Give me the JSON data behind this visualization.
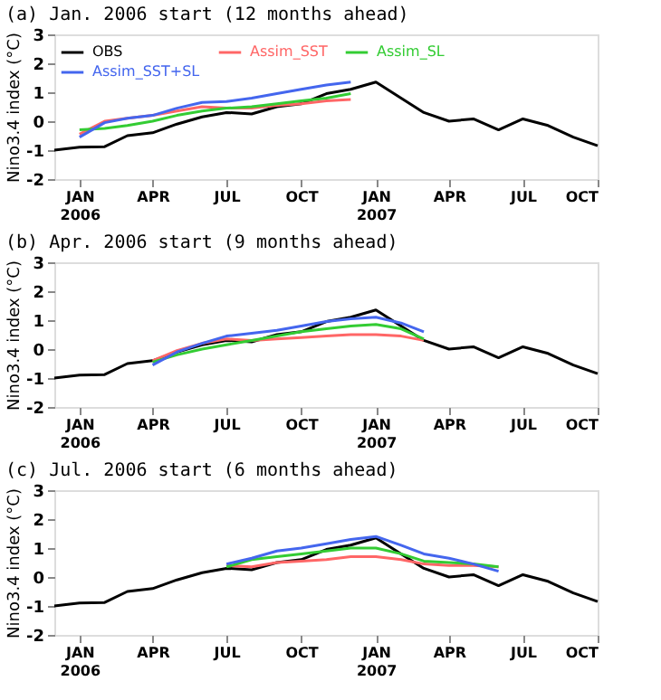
{
  "chart_data": [
    {
      "type": "line",
      "title": "(a) Jan. 2006 start (12 months ahead)",
      "ylabel": "Nino3.4 index (°C)",
      "legend": "top left",
      "grid": false,
      "marker": "none",
      "line_style": "solid",
      "xlim": [
        "2005-12",
        "2007-10"
      ],
      "xticks": [
        {
          "value": "2006-01",
          "label": "JAN\n2006"
        },
        {
          "value": "2006-04",
          "label": "APR"
        },
        {
          "value": "2006-07",
          "label": "JUL"
        },
        {
          "value": "2006-10",
          "label": "OCT"
        },
        {
          "value": "2007-01",
          "label": "JAN\n2007"
        },
        {
          "value": "2007-04",
          "label": "APR"
        },
        {
          "value": "2007-07",
          "label": "JUL"
        },
        {
          "value": "2007-10",
          "label": "OCT"
        }
      ],
      "ylim": [
        -2,
        3
      ],
      "yticks": [
        -2,
        -1,
        0,
        1,
        2,
        3
      ],
      "series": [
        {
          "name": "OBS",
          "color": "#000000",
          "x": [
            "2005-12",
            "2006-01",
            "2006-02",
            "2006-03",
            "2006-04",
            "2006-05",
            "2006-06",
            "2006-07",
            "2006-08",
            "2006-09",
            "2006-10",
            "2006-11",
            "2006-12",
            "2007-01",
            "2007-02",
            "2007-03",
            "2007-04",
            "2007-05",
            "2007-06",
            "2007-07",
            "2007-08",
            "2007-09",
            "2007-10"
          ],
          "values": [
            -1.0,
            -0.9,
            -0.88,
            -0.5,
            -0.4,
            -0.1,
            0.15,
            0.3,
            0.25,
            0.5,
            0.6,
            0.95,
            1.1,
            1.35,
            0.8,
            0.3,
            0.0,
            0.08,
            -0.3,
            0.08,
            -0.15,
            -0.55,
            -0.85
          ]
        },
        {
          "name": "Assim_SST",
          "color": "#ff6666",
          "x": [
            "2006-01",
            "2006-02",
            "2006-03",
            "2006-04",
            "2006-05",
            "2006-06",
            "2006-07",
            "2006-08",
            "2006-09",
            "2006-10",
            "2006-11",
            "2006-12"
          ],
          "values": [
            -0.45,
            0.0,
            0.1,
            0.2,
            0.35,
            0.5,
            0.45,
            0.45,
            0.55,
            0.6,
            0.7,
            0.75
          ]
        },
        {
          "name": "Assim_SL",
          "color": "#33cc33",
          "x": [
            "2006-01",
            "2006-02",
            "2006-03",
            "2006-04",
            "2006-05",
            "2006-06",
            "2006-07",
            "2006-08",
            "2006-09",
            "2006-10",
            "2006-11",
            "2006-12"
          ],
          "values": [
            -0.3,
            -0.25,
            -0.15,
            0.0,
            0.2,
            0.35,
            0.45,
            0.5,
            0.6,
            0.7,
            0.8,
            0.95
          ]
        },
        {
          "name": "Assim_SST+SL",
          "color": "#4466ee",
          "x": [
            "2006-01",
            "2006-02",
            "2006-03",
            "2006-04",
            "2006-05",
            "2006-06",
            "2006-07",
            "2006-08",
            "2006-09",
            "2006-10",
            "2006-11",
            "2006-12"
          ],
          "values": [
            -0.55,
            -0.05,
            0.1,
            0.2,
            0.45,
            0.65,
            0.68,
            0.8,
            0.95,
            1.1,
            1.25,
            1.35
          ]
        }
      ]
    },
    {
      "type": "line",
      "title": "(b) Apr. 2006 start (9 months ahead)",
      "ylabel": "Nino3.4 index (°C)",
      "legend": "top left",
      "grid": false,
      "marker": "none",
      "line_style": "solid",
      "xlim": [
        "2005-12",
        "2007-10"
      ],
      "xticks": [
        {
          "value": "2006-01",
          "label": "JAN\n2006"
        },
        {
          "value": "2006-04",
          "label": "APR"
        },
        {
          "value": "2006-07",
          "label": "JUL"
        },
        {
          "value": "2006-10",
          "label": "OCT"
        },
        {
          "value": "2007-01",
          "label": "JAN\n2007"
        },
        {
          "value": "2007-04",
          "label": "APR"
        },
        {
          "value": "2007-07",
          "label": "JUL"
        },
        {
          "value": "2007-10",
          "label": "OCT"
        }
      ],
      "ylim": [
        -2,
        3
      ],
      "yticks": [
        -2,
        -1,
        0,
        1,
        2,
        3
      ],
      "series": [
        {
          "name": "OBS",
          "color": "#000000",
          "x": [
            "2005-12",
            "2006-01",
            "2006-02",
            "2006-03",
            "2006-04",
            "2006-05",
            "2006-06",
            "2006-07",
            "2006-08",
            "2006-09",
            "2006-10",
            "2006-11",
            "2006-12",
            "2007-01",
            "2007-02",
            "2007-03",
            "2007-04",
            "2007-05",
            "2007-06",
            "2007-07",
            "2007-08",
            "2007-09",
            "2007-10"
          ],
          "values": [
            -1.0,
            -0.9,
            -0.88,
            -0.5,
            -0.4,
            -0.1,
            0.15,
            0.3,
            0.25,
            0.5,
            0.6,
            0.95,
            1.1,
            1.35,
            0.8,
            0.3,
            0.0,
            0.08,
            -0.3,
            0.08,
            -0.15,
            -0.55,
            -0.85
          ]
        },
        {
          "name": "Assim_SST",
          "color": "#ff6666",
          "x": [
            "2006-04",
            "2006-05",
            "2006-06",
            "2006-07",
            "2006-08",
            "2006-09",
            "2006-10",
            "2006-11",
            "2006-12",
            "2007-01",
            "2007-02",
            "2007-03"
          ],
          "values": [
            -0.4,
            -0.05,
            0.2,
            0.35,
            0.3,
            0.35,
            0.4,
            0.45,
            0.5,
            0.5,
            0.45,
            0.3
          ]
        },
        {
          "name": "Assim_SL",
          "color": "#33cc33",
          "x": [
            "2006-04",
            "2006-05",
            "2006-06",
            "2006-07",
            "2006-08",
            "2006-09",
            "2006-10",
            "2006-11",
            "2006-12",
            "2007-01",
            "2007-02",
            "2007-03"
          ],
          "values": [
            -0.45,
            -0.2,
            0.0,
            0.15,
            0.3,
            0.45,
            0.6,
            0.7,
            0.8,
            0.85,
            0.7,
            0.35
          ]
        },
        {
          "name": "Assim_SST+SL",
          "color": "#4466ee",
          "x": [
            "2006-04",
            "2006-05",
            "2006-06",
            "2006-07",
            "2006-08",
            "2006-09",
            "2006-10",
            "2006-11",
            "2006-12",
            "2007-01",
            "2007-02",
            "2007-03"
          ],
          "values": [
            -0.55,
            -0.1,
            0.2,
            0.45,
            0.55,
            0.65,
            0.8,
            0.95,
            1.05,
            1.1,
            0.9,
            0.6
          ]
        }
      ]
    },
    {
      "type": "line",
      "title": "(c) Jul. 2006 start (6 months ahead)",
      "ylabel": "Nino3.4 index (°C)",
      "legend": "top left",
      "grid": false,
      "marker": "none",
      "line_style": "solid",
      "xlim": [
        "2005-12",
        "2007-10"
      ],
      "xticks": [
        {
          "value": "2006-01",
          "label": "JAN\n2006"
        },
        {
          "value": "2006-04",
          "label": "APR"
        },
        {
          "value": "2006-07",
          "label": "JUL"
        },
        {
          "value": "2006-10",
          "label": "OCT"
        },
        {
          "value": "2007-01",
          "label": "JAN\n2007"
        },
        {
          "value": "2007-04",
          "label": "APR"
        },
        {
          "value": "2007-07",
          "label": "JUL"
        },
        {
          "value": "2007-10",
          "label": "OCT"
        }
      ],
      "ylim": [
        -2,
        3
      ],
      "yticks": [
        -2,
        -1,
        0,
        1,
        2,
        3
      ],
      "series": [
        {
          "name": "OBS",
          "color": "#000000",
          "x": [
            "2005-12",
            "2006-01",
            "2006-02",
            "2006-03",
            "2006-04",
            "2006-05",
            "2006-06",
            "2006-07",
            "2006-08",
            "2006-09",
            "2006-10",
            "2006-11",
            "2006-12",
            "2007-01",
            "2007-02",
            "2007-03",
            "2007-04",
            "2007-05",
            "2007-06",
            "2007-07",
            "2007-08",
            "2007-09",
            "2007-10"
          ],
          "values": [
            -1.0,
            -0.9,
            -0.88,
            -0.5,
            -0.4,
            -0.1,
            0.15,
            0.3,
            0.25,
            0.5,
            0.6,
            0.95,
            1.1,
            1.35,
            0.8,
            0.3,
            0.0,
            0.08,
            -0.3,
            0.08,
            -0.15,
            -0.55,
            -0.85
          ]
        },
        {
          "name": "Assim_SST",
          "color": "#ff6666",
          "x": [
            "2006-07",
            "2006-08",
            "2006-09",
            "2006-10",
            "2006-11",
            "2006-12",
            "2007-01",
            "2007-02",
            "2007-03",
            "2007-04",
            "2007-05",
            "2007-06"
          ],
          "values": [
            0.4,
            0.35,
            0.5,
            0.55,
            0.6,
            0.7,
            0.7,
            0.6,
            0.45,
            0.4,
            0.4,
            0.35
          ]
        },
        {
          "name": "Assim_SL",
          "color": "#33cc33",
          "x": [
            "2006-07",
            "2006-08",
            "2006-09",
            "2006-10",
            "2006-11",
            "2006-12",
            "2007-01",
            "2007-02",
            "2007-03",
            "2007-04",
            "2007-05",
            "2007-06"
          ],
          "values": [
            0.35,
            0.6,
            0.7,
            0.8,
            0.9,
            1.0,
            1.0,
            0.8,
            0.55,
            0.5,
            0.45,
            0.35
          ]
        },
        {
          "name": "Assim_SST+SL",
          "color": "#4466ee",
          "x": [
            "2006-07",
            "2006-08",
            "2006-09",
            "2006-10",
            "2006-11",
            "2006-12",
            "2007-01",
            "2007-02",
            "2007-03",
            "2007-04",
            "2007-05",
            "2007-06"
          ],
          "values": [
            0.45,
            0.65,
            0.9,
            1.0,
            1.15,
            1.3,
            1.4,
            1.1,
            0.8,
            0.65,
            0.45,
            0.2
          ]
        }
      ]
    }
  ]
}
